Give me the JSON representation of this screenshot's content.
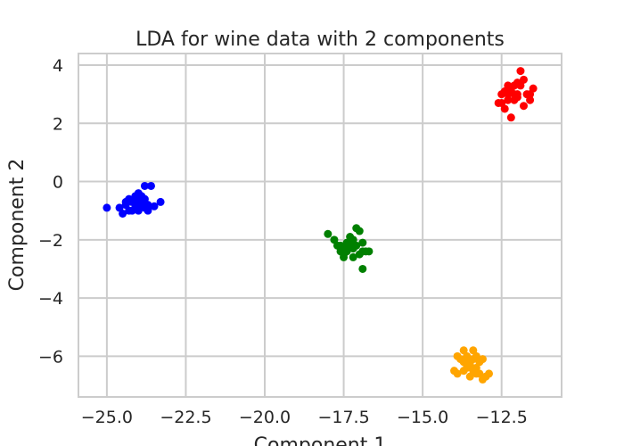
{
  "chart_data": {
    "type": "scatter",
    "title": "LDA for wine data with 2 components",
    "xlabel": "Component 1",
    "ylabel": "Component 2",
    "xlim": [
      -25.9,
      -10.6
    ],
    "ylim": [
      -7.4,
      4.4
    ],
    "xticks": [
      -25.0,
      -22.5,
      -20.0,
      -17.5,
      -15.0,
      -12.5
    ],
    "xtick_labels": [
      "−25.0",
      "−22.5",
      "−20.0",
      "−17.5",
      "−15.0",
      "−12.5"
    ],
    "yticks": [
      4,
      2,
      0,
      -2,
      -4,
      -6
    ],
    "ytick_labels": [
      "4",
      "2",
      "0",
      "−2",
      "−4",
      "−6"
    ],
    "grid": true,
    "series": [
      {
        "color": "#0000ff",
        "points": [
          [
            -25.0,
            -0.9
          ],
          [
            -24.6,
            -0.9
          ],
          [
            -24.5,
            -1.1
          ],
          [
            -24.4,
            -0.8
          ],
          [
            -24.3,
            -0.6
          ],
          [
            -24.2,
            -1.0
          ],
          [
            -24.2,
            -0.7
          ],
          [
            -24.1,
            -0.5
          ],
          [
            -24.1,
            -0.9
          ],
          [
            -24.0,
            -0.4
          ],
          [
            -24.0,
            -0.6
          ],
          [
            -23.9,
            -0.8
          ],
          [
            -23.9,
            -0.5
          ],
          [
            -23.8,
            -0.9
          ],
          [
            -23.8,
            -0.6
          ],
          [
            -23.7,
            -0.8
          ],
          [
            -23.7,
            -1.0
          ],
          [
            -23.8,
            -0.15
          ],
          [
            -23.6,
            -0.15
          ],
          [
            -23.5,
            -0.85
          ],
          [
            -23.3,
            -0.7
          ],
          [
            -24.3,
            -1.0
          ],
          [
            -24.0,
            -1.0
          ],
          [
            -24.4,
            -0.7
          ],
          [
            -24.0,
            -0.8
          ]
        ]
      },
      {
        "color": "#008000",
        "points": [
          [
            -18.0,
            -1.8
          ],
          [
            -17.8,
            -2.0
          ],
          [
            -17.7,
            -2.2
          ],
          [
            -17.6,
            -2.2
          ],
          [
            -17.5,
            -2.3
          ],
          [
            -17.5,
            -2.5
          ],
          [
            -17.4,
            -2.1
          ],
          [
            -17.4,
            -2.4
          ],
          [
            -17.3,
            -2.2
          ],
          [
            -17.3,
            -1.9
          ],
          [
            -17.2,
            -2.6
          ],
          [
            -17.2,
            -2.3
          ],
          [
            -17.1,
            -1.6
          ],
          [
            -17.0,
            -1.7
          ],
          [
            -17.0,
            -2.5
          ],
          [
            -16.9,
            -2.1
          ],
          [
            -16.9,
            -2.4
          ],
          [
            -16.8,
            -2.4
          ],
          [
            -16.7,
            -2.4
          ],
          [
            -16.9,
            -3.0
          ],
          [
            -17.6,
            -2.4
          ],
          [
            -17.5,
            -2.6
          ],
          [
            -17.2,
            -2.0
          ],
          [
            -17.4,
            -2.3
          ],
          [
            -17.1,
            -2.2
          ]
        ]
      },
      {
        "color": "#ff0000",
        "points": [
          [
            -12.6,
            2.7
          ],
          [
            -12.5,
            3.0
          ],
          [
            -12.4,
            2.5
          ],
          [
            -12.4,
            3.1
          ],
          [
            -12.3,
            2.8
          ],
          [
            -12.3,
            3.3
          ],
          [
            -12.2,
            2.2
          ],
          [
            -12.2,
            3.2
          ],
          [
            -12.1,
            3.0
          ],
          [
            -12.1,
            2.8
          ],
          [
            -12.0,
            3.4
          ],
          [
            -12.0,
            3.0
          ],
          [
            -11.9,
            3.8
          ],
          [
            -11.9,
            3.3
          ],
          [
            -11.8,
            2.6
          ],
          [
            -11.8,
            3.5
          ],
          [
            -11.7,
            3.0
          ],
          [
            -11.6,
            2.8
          ],
          [
            -11.5,
            3.2
          ],
          [
            -11.6,
            3.0
          ],
          [
            -12.5,
            2.7
          ],
          [
            -12.2,
            3.1
          ],
          [
            -12.0,
            2.9
          ],
          [
            -12.3,
            3.0
          ],
          [
            -12.1,
            3.3
          ]
        ]
      },
      {
        "color": "#ffa500",
        "points": [
          [
            -14.0,
            -6.5
          ],
          [
            -13.9,
            -6.6
          ],
          [
            -13.9,
            -6.0
          ],
          [
            -13.8,
            -6.1
          ],
          [
            -13.7,
            -6.2
          ],
          [
            -13.7,
            -5.8
          ],
          [
            -13.6,
            -6.4
          ],
          [
            -13.6,
            -6.0
          ],
          [
            -13.5,
            -6.3
          ],
          [
            -13.5,
            -6.7
          ],
          [
            -13.4,
            -6.1
          ],
          [
            -13.4,
            -5.8
          ],
          [
            -13.3,
            -6.4
          ],
          [
            -13.3,
            -6.0
          ],
          [
            -13.2,
            -6.6
          ],
          [
            -13.2,
            -6.2
          ],
          [
            -13.1,
            -6.8
          ],
          [
            -13.1,
            -6.1
          ],
          [
            -13.0,
            -6.7
          ],
          [
            -12.9,
            -6.6
          ],
          [
            -13.6,
            -6.3
          ],
          [
            -13.4,
            -6.5
          ],
          [
            -13.5,
            -6.1
          ],
          [
            -13.3,
            -6.6
          ],
          [
            -13.7,
            -6.5
          ]
        ]
      }
    ]
  }
}
